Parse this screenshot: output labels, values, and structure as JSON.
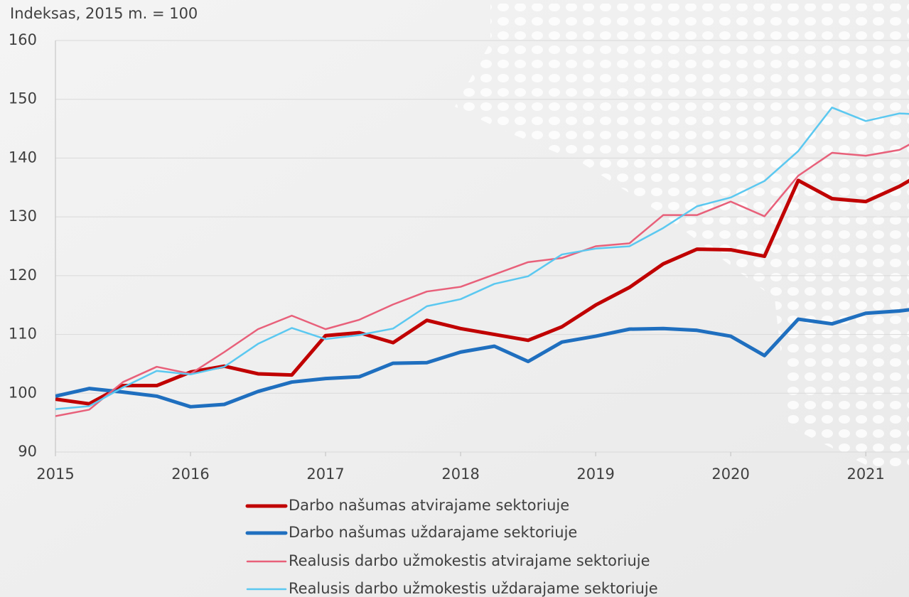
{
  "chart_data": {
    "type": "line",
    "y_axis_label": "Indeksas, 2015 m. = 100",
    "x": [
      2015,
      2015.25,
      2015.5,
      2015.75,
      2016,
      2016.25,
      2016.5,
      2016.75,
      2017,
      2017.25,
      2017.5,
      2017.75,
      2018,
      2018.25,
      2018.5,
      2018.75,
      2019,
      2019.25,
      2019.5,
      2019.75,
      2020,
      2020.25,
      2020.5,
      2020.75,
      2021,
      2021.25,
      2021.5
    ],
    "series": [
      {
        "name": "Darbo našumas atvirajame sektoriuje",
        "color": "#c00000",
        "width": 5,
        "values": [
          99,
          98.2,
          101.3,
          101.3,
          103.6,
          104.6,
          103.3,
          103.1,
          109.8,
          110.3,
          108.6,
          112.4,
          111,
          110,
          109,
          111.3,
          115,
          118,
          122,
          124.5,
          124.4,
          123.3,
          136.2,
          133.1,
          132.6,
          135.2,
          138.5
        ]
      },
      {
        "name": "Darbo našumas uždarajame sektoriuje",
        "color": "#1f6fbf",
        "width": 5,
        "values": [
          99.5,
          100.8,
          100.2,
          99.5,
          97.7,
          98.1,
          100.3,
          101.9,
          102.5,
          102.8,
          105.1,
          105.2,
          107,
          108,
          105.4,
          108.7,
          109.7,
          110.9,
          111,
          110.7,
          109.7,
          106.4,
          112.6,
          111.8,
          113.6,
          114,
          114.7
        ]
      },
      {
        "name": "Realusis darbo užmokestis atvirajame sektoriuje",
        "color": "#e8607a",
        "width": 2.5,
        "values": [
          96.1,
          97.2,
          101.9,
          104.5,
          103.3,
          107,
          110.9,
          113.2,
          110.9,
          112.5,
          115.1,
          117.3,
          118.1,
          120.2,
          122.3,
          123,
          125,
          125.5,
          130.3,
          130.3,
          132.6,
          130.1,
          137,
          140.9,
          140.4,
          141.4,
          144.5
        ]
      },
      {
        "name": "Realusis darbo užmokestis uždarajame sektoriuje",
        "color": "#5bc8f0",
        "width": 2.5,
        "values": [
          97.3,
          97.8,
          101,
          103.8,
          103.2,
          104.5,
          108.4,
          111.1,
          109.2,
          109.9,
          111,
          114.8,
          116,
          118.6,
          119.9,
          123.6,
          124.6,
          125,
          128.1,
          131.8,
          133.3,
          136.1,
          141.2,
          148.6,
          146.3,
          147.6,
          147.3
        ]
      }
    ],
    "xlim": [
      2015,
      2021.32
    ],
    "xticks": [
      2015,
      2016,
      2017,
      2018,
      2019,
      2020,
      2021
    ],
    "ylim": [
      90,
      160
    ],
    "yticks": [
      90,
      100,
      110,
      120,
      130,
      140,
      150,
      160
    ],
    "grid": true,
    "legend": "bottom"
  }
}
